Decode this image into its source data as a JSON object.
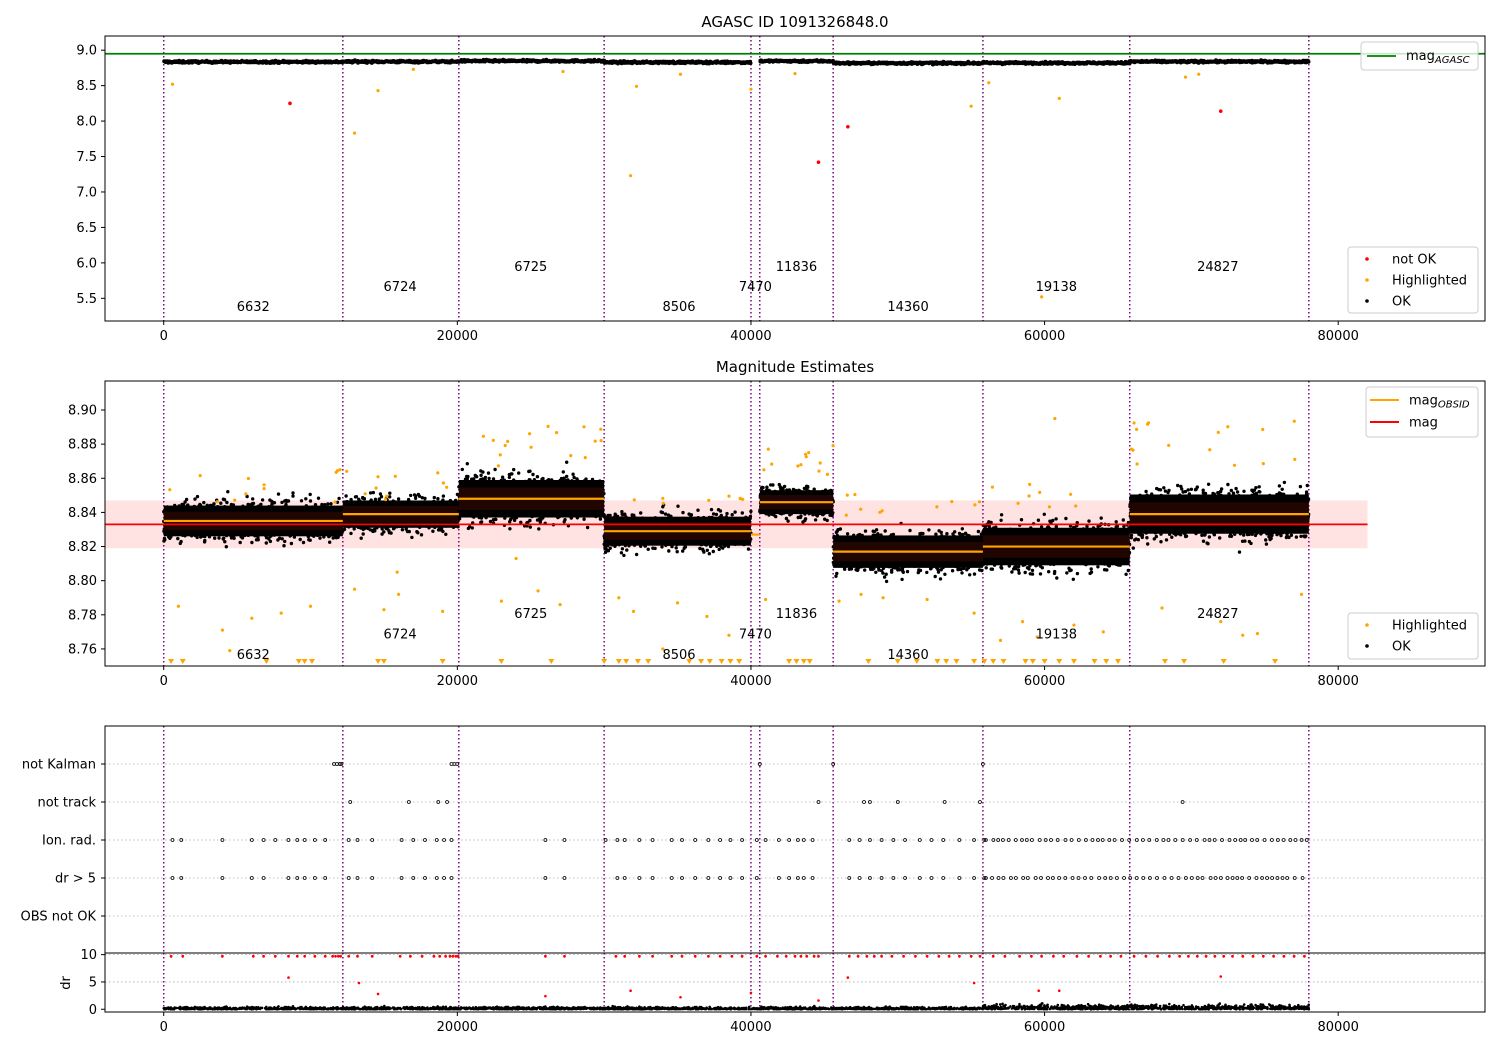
{
  "figure_title": "AGASC ID 1091326848.0",
  "colors": {
    "ok": "#000000",
    "highlighted": "#ffa500",
    "not_ok": "#ff0000",
    "mag_agasc": "#008000",
    "mag_obsid": "#ffa500",
    "mag": "#ff0000",
    "obs_boundary": "#800080",
    "band": "#ffd8d8"
  },
  "obs_boundaries": [
    0,
    12200,
    20100,
    30000,
    40000,
    40600,
    45600,
    55800,
    65800,
    78000
  ],
  "obsids": [
    {
      "id": "6632",
      "x": 6100,
      "row": 0
    },
    {
      "id": "6724",
      "x": 16100,
      "row": 1
    },
    {
      "id": "6725",
      "x": 25000,
      "row": 2
    },
    {
      "id": "8506",
      "x": 35100,
      "row": 0
    },
    {
      "id": "7470",
      "x": 40300,
      "row": 1
    },
    {
      "id": "11836",
      "x": 43100,
      "row": 2
    },
    {
      "id": "14360",
      "x": 50700,
      "row": 0
    },
    {
      "id": "19138",
      "x": 60800,
      "row": 1
    },
    {
      "id": "24827",
      "x": 71800,
      "row": 2
    }
  ],
  "chart_data": [
    {
      "type": "scatter",
      "title": "AGASC ID 1091326848.0",
      "xlim": [
        -4000,
        90000
      ],
      "ylim": [
        5.18,
        9.2
      ],
      "xticks": [
        "0",
        "20000",
        "40000",
        "60000",
        "80000"
      ],
      "xtick_values": [
        0,
        20000,
        40000,
        60000,
        80000
      ],
      "yticks": [
        "5.5",
        "6.0",
        "6.5",
        "7.0",
        "7.5",
        "8.0",
        "8.5",
        "9.0"
      ],
      "ytick_values": [
        5.5,
        6.0,
        6.5,
        7.0,
        7.5,
        8.0,
        8.5,
        9.0
      ],
      "mag_agasc": 8.95,
      "obs_levels": [
        8.835,
        8.839,
        8.848,
        8.829,
        8.827,
        8.846,
        8.817,
        8.82,
        8.839
      ],
      "ok_spread": 0.02,
      "label_y": [
        5.38,
        5.66,
        5.94
      ],
      "not_ok_points": [
        [
          8600,
          8.25
        ],
        [
          46600,
          7.92
        ],
        [
          44600,
          7.42
        ],
        [
          72000,
          8.14
        ]
      ],
      "highlighted_points": [
        [
          600,
          8.52
        ],
        [
          13000,
          7.83
        ],
        [
          14600,
          8.43
        ],
        [
          31800,
          7.23
        ],
        [
          32200,
          8.49
        ],
        [
          35200,
          8.66
        ],
        [
          40000,
          8.45
        ],
        [
          43000,
          8.67
        ],
        [
          55000,
          8.21
        ],
        [
          56200,
          8.54
        ],
        [
          59800,
          5.52
        ],
        [
          61000,
          8.32
        ],
        [
          69600,
          8.62
        ],
        [
          70500,
          8.66
        ],
        [
          17000,
          8.73
        ],
        [
          27200,
          8.7
        ]
      ],
      "legend_top": [
        {
          "label": "mag",
          "sub": "AGASC"
        }
      ],
      "legend_bottom": [
        "not OK",
        "Highlighted",
        "OK"
      ]
    },
    {
      "type": "scatter",
      "title": "Magnitude Estimates",
      "xlim": [
        -4000,
        90000
      ],
      "ylim": [
        8.75,
        8.917
      ],
      "xticks": [
        "0",
        "20000",
        "40000",
        "60000",
        "80000"
      ],
      "xtick_values": [
        0,
        20000,
        40000,
        60000,
        80000
      ],
      "yticks": [
        "8.76",
        "8.78",
        "8.80",
        "8.82",
        "8.84",
        "8.86",
        "8.88",
        "8.90"
      ],
      "ytick_values": [
        8.76,
        8.78,
        8.8,
        8.82,
        8.84,
        8.86,
        8.88,
        8.9
      ],
      "mag": 8.833,
      "mag_band": [
        8.819,
        8.847
      ],
      "mag_line_x": [
        -4000,
        82000
      ],
      "obs_levels": [
        8.835,
        8.839,
        8.848,
        8.829,
        8.827,
        8.846,
        8.817,
        8.82,
        8.839
      ],
      "obs_spreads": [
        0.018,
        0.016,
        0.022,
        0.017,
        0.017,
        0.014,
        0.019,
        0.022,
        0.023
      ],
      "label_y": [
        8.7565,
        8.7685,
        8.7805
      ],
      "highlighted_points": [
        [
          1000,
          8.785
        ],
        [
          4000,
          8.771
        ],
        [
          4500,
          8.759
        ],
        [
          6000,
          8.778
        ],
        [
          8000,
          8.781
        ],
        [
          10000,
          8.785
        ],
        [
          13000,
          8.795
        ],
        [
          15000,
          8.783
        ],
        [
          15900,
          8.805
        ],
        [
          16000,
          8.792
        ],
        [
          19000,
          8.782
        ],
        [
          23000,
          8.788
        ],
        [
          24000,
          8.813
        ],
        [
          25500,
          8.794
        ],
        [
          27000,
          8.786
        ],
        [
          31000,
          8.79
        ],
        [
          32000,
          8.782
        ],
        [
          34000,
          8.76
        ],
        [
          35000,
          8.787
        ],
        [
          37000,
          8.779
        ],
        [
          38500,
          8.768
        ],
        [
          41000,
          8.789
        ],
        [
          46000,
          8.788
        ],
        [
          47500,
          8.792
        ],
        [
          49000,
          8.79
        ],
        [
          52000,
          8.789
        ],
        [
          55200,
          8.781
        ],
        [
          57000,
          8.765
        ],
        [
          58500,
          8.776
        ],
        [
          59500,
          8.767
        ],
        [
          60700,
          8.895
        ],
        [
          62000,
          8.774
        ],
        [
          64000,
          8.77
        ],
        [
          68000,
          8.784
        ],
        [
          72000,
          8.776
        ],
        [
          73500,
          8.768
        ],
        [
          74500,
          8.769
        ],
        [
          77500,
          8.792
        ]
      ],
      "highlighted_bands": [
        [
          0,
          12200,
          8.846,
          8.867,
          12
        ],
        [
          12200,
          20100,
          8.845,
          8.866,
          10
        ],
        [
          20100,
          30000,
          8.866,
          8.893,
          16
        ],
        [
          30000,
          40000,
          8.845,
          8.852,
          8
        ],
        [
          40600,
          45600,
          8.862,
          8.882,
          12
        ],
        [
          45600,
          55800,
          8.838,
          8.852,
          10
        ],
        [
          55800,
          65800,
          8.842,
          8.857,
          8
        ],
        [
          65800,
          78000,
          8.865,
          8.897,
          16
        ]
      ],
      "low_markers": [
        500,
        1300,
        7000,
        9200,
        9600,
        10100,
        14600,
        15000,
        19000,
        23000,
        26400,
        30000,
        31000,
        31500,
        32300,
        33000,
        35800,
        36600,
        37200,
        38000,
        38600,
        39200,
        42600,
        43100,
        43600,
        44000,
        48000,
        50000,
        51300,
        52700,
        53300,
        54000,
        55200,
        55900,
        56500,
        57200,
        58700,
        59200,
        60000,
        61000,
        62000,
        63400,
        64200,
        65000,
        68200,
        69500,
        72200,
        75700
      ],
      "legend_top": [
        {
          "label": "mag",
          "sub": "OBSID"
        },
        {
          "label": "mag",
          "sub": ""
        }
      ],
      "legend_bottom": [
        "Highlighted",
        "OK"
      ]
    },
    {
      "type": "scatter",
      "title": "",
      "xlim": [
        -4000,
        90000
      ],
      "categories": [
        "not Kalman",
        "not track",
        "Ion. rad.",
        "dr > 5",
        "OBS not OK"
      ],
      "flag_points": {
        "not Kalman": [
          11600,
          11800,
          12000,
          12100,
          19600,
          19800,
          20000,
          40600,
          45600,
          55800
        ],
        "not track": [
          12700,
          16700,
          18700,
          19300,
          44600,
          47700,
          48100,
          50000,
          53200,
          55600,
          69400
        ],
        "Ion. rad.": [
          600,
          1200,
          4000,
          6000,
          6800,
          7600,
          8500,
          9100,
          9600,
          10300,
          11000,
          12600,
          13200,
          14200,
          16200,
          17000,
          17800,
          18600,
          19100,
          19600,
          26000,
          27300,
          30100,
          30900,
          31400,
          32400,
          33300,
          34600,
          35300,
          36200,
          37100,
          37900,
          38600,
          39400,
          40400,
          41000,
          41900,
          42600,
          43200,
          43600,
          44200,
          46700,
          47400,
          48100,
          48900,
          49700,
          50500,
          51500,
          52300,
          53100,
          54200,
          55200,
          55900
        ],
        "dr > 5": [
          600,
          1200,
          4000,
          6000,
          6800,
          8500,
          9100,
          9600,
          10300,
          11000,
          12600,
          13200,
          14200,
          16200,
          17000,
          17800,
          18600,
          19100,
          19600,
          26000,
          27300,
          30900,
          31400,
          32400,
          33300,
          34600,
          35300,
          36200,
          37100,
          37900,
          38600,
          39400,
          40400,
          41900,
          42600,
          43200,
          43600,
          44200,
          46700,
          47400,
          48100,
          48900,
          49700,
          50500,
          51500,
          52300,
          53100,
          54200,
          55200,
          55900
        ],
        "OBS not OK": []
      },
      "dense_ranges": [
        [
          55800,
          78000,
          0.5,
          1.0
        ],
        [
          65800,
          78000,
          0.5,
          1.0
        ]
      ]
    },
    {
      "type": "scatter",
      "title": "",
      "xlim": [
        -4000,
        90000
      ],
      "ylim": [
        -0.5,
        10.3
      ],
      "ylabel": "dr",
      "xticks": [
        "0",
        "20000",
        "40000",
        "60000",
        "80000"
      ],
      "xtick_values": [
        0,
        20000,
        40000,
        60000,
        80000
      ],
      "yticks": [
        "0",
        "5",
        "10"
      ],
      "ytick_values": [
        0,
        5,
        10
      ],
      "mid_points": [
        [
          8500,
          5.8
        ],
        [
          13300,
          4.8
        ],
        [
          14600,
          2.8
        ],
        [
          26000,
          2.4
        ],
        [
          31800,
          3.4
        ],
        [
          35200,
          2.2
        ],
        [
          40000,
          3.0
        ],
        [
          46600,
          5.8
        ],
        [
          55200,
          4.8
        ],
        [
          59600,
          3.4
        ],
        [
          61000,
          3.4
        ],
        [
          72000,
          6.0
        ],
        [
          44600,
          1.6
        ]
      ],
      "ceiling_x": [
        500,
        1300,
        4000,
        6100,
        6800,
        7600,
        8500,
        9100,
        9600,
        10300,
        11000,
        11500,
        11700,
        11900,
        12050,
        12600,
        13200,
        14200,
        16100,
        16800,
        17600,
        18400,
        18800,
        19200,
        19500,
        19700,
        19900,
        20050,
        26000,
        27300,
        30800,
        31400,
        32400,
        33300,
        34600,
        35300,
        36200,
        37100,
        37900,
        38700,
        39400,
        40400,
        41000,
        41800,
        42400,
        43000,
        43400,
        43800,
        44300,
        44600,
        46700,
        47300,
        47900,
        48400,
        48900,
        49600,
        50400,
        51200,
        52000,
        52800,
        53500,
        54200,
        55000,
        55600,
        56500,
        57300,
        58300,
        59100,
        59800,
        60600,
        61300,
        62200,
        63000,
        63800,
        64500,
        65200,
        66100,
        66900,
        67700,
        68500,
        69200,
        69800,
        70400,
        71000,
        71600,
        72200,
        72800,
        73500,
        74200,
        74900,
        75600,
        76300,
        77000,
        77700
      ]
    }
  ]
}
